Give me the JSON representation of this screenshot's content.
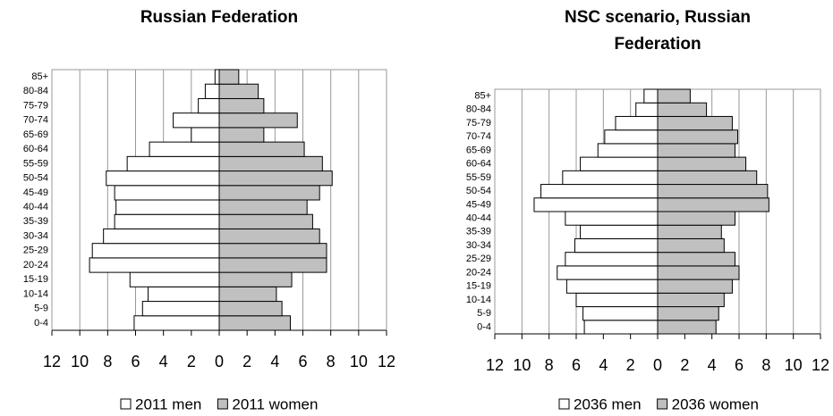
{
  "chart_data": [
    {
      "type": "pyramid",
      "title": "Russian Federation",
      "categories": [
        "0-4",
        "5-9",
        "10-14",
        "15-19",
        "20-24",
        "25-29",
        "30-34",
        "35-39",
        "40-44",
        "45-49",
        "50-54",
        "55-59",
        "60-64",
        "65-69",
        "70-74",
        "75-79",
        "80-84",
        "85+"
      ],
      "series": [
        {
          "name": "2011 men",
          "color": "#ffffff",
          "values": [
            -6.1,
            -5.5,
            -5.1,
            -6.4,
            -9.3,
            -9.1,
            -8.3,
            -7.5,
            -7.4,
            -7.5,
            -8.1,
            -6.6,
            -5.0,
            -2.0,
            -3.3,
            -1.5,
            -1.0,
            -0.3
          ]
        },
        {
          "name": "2011 women",
          "color": "#c0c0c0",
          "values": [
            5.1,
            4.5,
            4.1,
            5.2,
            7.7,
            7.7,
            7.2,
            6.7,
            6.3,
            7.2,
            8.1,
            7.4,
            6.1,
            3.2,
            5.6,
            3.2,
            2.8,
            1.4
          ]
        }
      ],
      "xlim": [
        -12,
        12
      ],
      "xticks": [
        {
          "value": -12,
          "label": "12"
        },
        {
          "value": -10,
          "label": "10"
        },
        {
          "value": -8,
          "label": "8"
        },
        {
          "value": -6,
          "label": "6"
        },
        {
          "value": -4,
          "label": "4"
        },
        {
          "value": -2,
          "label": "2"
        },
        0,
        2,
        4,
        6,
        8,
        10,
        12
      ],
      "grid": true
    },
    {
      "type": "pyramid",
      "title": "NSC scenario, Russian Federation",
      "categories": [
        "0-4",
        "5-9",
        "10-14",
        "15-19",
        "20-24",
        "25-29",
        "30-34",
        "35-39",
        "40-44",
        "45-49",
        "50-54",
        "55-59",
        "60-64",
        "65-69",
        "70-74",
        "75-79",
        "80-84",
        "85+"
      ],
      "series": [
        {
          "name": "2036 men",
          "color": "#ffffff",
          "values": [
            -5.4,
            -5.5,
            -6.0,
            -6.7,
            -7.4,
            -6.8,
            -6.1,
            -5.7,
            -6.8,
            -9.1,
            -8.6,
            -7.0,
            -5.7,
            -4.4,
            -3.9,
            -3.1,
            -1.6,
            -1.0
          ]
        },
        {
          "name": "2036 women",
          "color": "#c0c0c0",
          "values": [
            4.3,
            4.5,
            4.9,
            5.5,
            6.0,
            5.7,
            4.9,
            4.7,
            5.7,
            8.2,
            8.1,
            7.3,
            6.5,
            5.7,
            5.9,
            5.5,
            3.6,
            2.4
          ]
        }
      ],
      "xlim": [
        -12,
        12
      ],
      "xticks": [
        {
          "value": -12,
          "label": "12"
        },
        {
          "value": -10,
          "label": "10"
        },
        {
          "value": -8,
          "label": "8"
        },
        {
          "value": -6,
          "label": "6"
        },
        {
          "value": -4,
          "label": "4"
        },
        {
          "value": -2,
          "label": "2"
        },
        0,
        2,
        4,
        6,
        8,
        10,
        12
      ],
      "grid": true
    }
  ]
}
